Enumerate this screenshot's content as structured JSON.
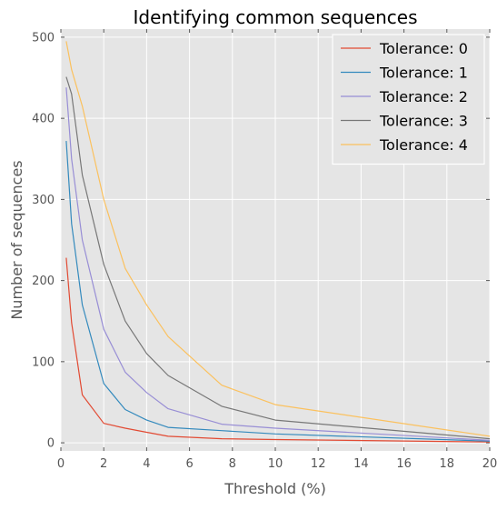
{
  "chart_data": {
    "type": "line",
    "title": "Identifying common sequences",
    "xlabel": "Threshold (%)",
    "ylabel": "Number of sequences",
    "xlim": [
      0,
      20
    ],
    "ylim": [
      -10,
      510
    ],
    "xticks": [
      0,
      2,
      4,
      6,
      8,
      10,
      12,
      14,
      16,
      18,
      20
    ],
    "yticks": [
      0,
      100,
      200,
      300,
      400,
      500
    ],
    "grid": true,
    "legend_position": "top-right",
    "x": [
      0.25,
      0.5,
      1,
      2,
      3,
      4,
      5,
      7.5,
      10,
      20
    ],
    "series": [
      {
        "name": "Tolerance: 0",
        "color": "#E24A33",
        "values": [
          228,
          148,
          59,
          24,
          18,
          13,
          8,
          5,
          4,
          1
        ]
      },
      {
        "name": "Tolerance: 1",
        "color": "#348ABD",
        "values": [
          372,
          270,
          170,
          73,
          41,
          28,
          19,
          15,
          11,
          2
        ]
      },
      {
        "name": "Tolerance: 2",
        "color": "#988ED5",
        "values": [
          438,
          350,
          250,
          140,
          87,
          62,
          42,
          23,
          18,
          3
        ]
      },
      {
        "name": "Tolerance: 3",
        "color": "#777777",
        "values": [
          451,
          430,
          330,
          220,
          150,
          110,
          83,
          45,
          28,
          5
        ]
      },
      {
        "name": "Tolerance: 4",
        "color": "#FBC15E",
        "values": [
          495,
          460,
          415,
          300,
          215,
          170,
          131,
          71,
          47,
          8
        ]
      }
    ]
  }
}
